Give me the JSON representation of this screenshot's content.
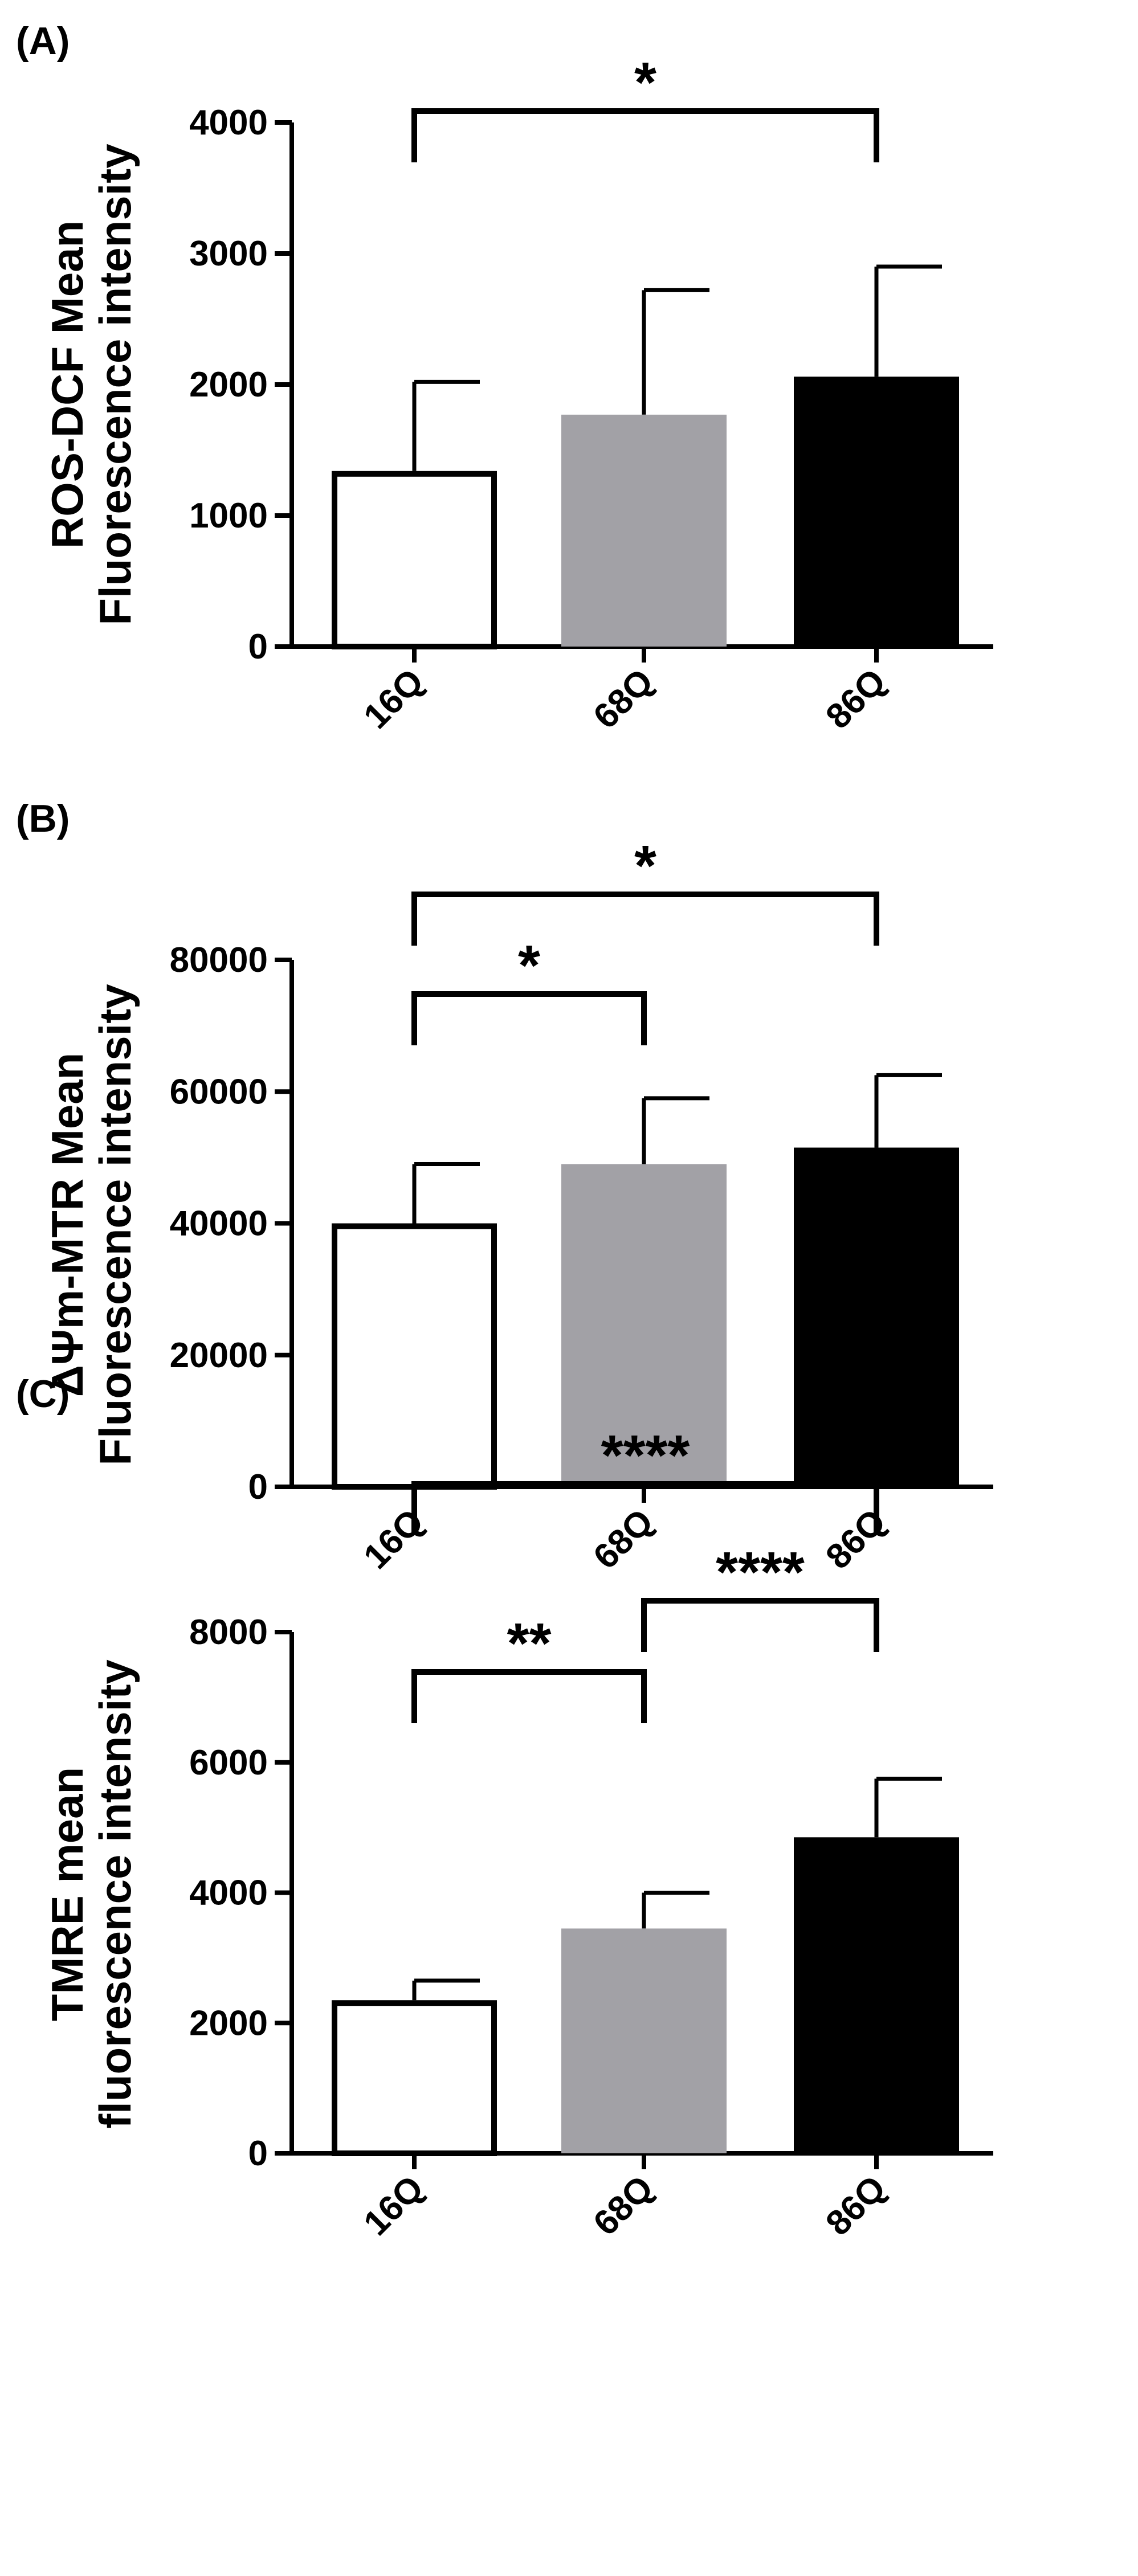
{
  "chart_data": [
    {
      "type": "bar",
      "panel_label": "(A)",
      "ylabel_lines": [
        "ROS-DCF Mean",
        "Fluorescence intensity"
      ],
      "categories": [
        "16Q",
        "68Q",
        "86Q"
      ],
      "values": [
        1340,
        1770,
        2060
      ],
      "errors": [
        680,
        950,
        840
      ],
      "ylim": [
        0,
        4000
      ],
      "yticks": [
        0,
        1000,
        2000,
        3000,
        4000
      ],
      "yticklabels": [
        "0",
        "1000",
        "2000",
        "3000",
        "4000"
      ],
      "bar_colors": [
        "#ffffff",
        "#a2a1a6",
        "#000000"
      ],
      "significance": [
        {
          "from": 0,
          "to": 2,
          "label": "*"
        }
      ]
    },
    {
      "type": "bar",
      "panel_label": "(B)",
      "ylabel_lines": [
        "ΔΨm-MTR Mean",
        "Fluorescence intensity"
      ],
      "categories": [
        "16Q",
        "68Q",
        "86Q"
      ],
      "values": [
        40000,
        49000,
        51500
      ],
      "errors": [
        9000,
        10000,
        11000
      ],
      "ylim": [
        0,
        80000
      ],
      "yticks": [
        0,
        20000,
        40000,
        60000,
        80000
      ],
      "yticklabels": [
        "0",
        "20000",
        "40000",
        "60000",
        "80000"
      ],
      "bar_colors": [
        "#ffffff",
        "#a2a1a6",
        "#000000"
      ],
      "significance": [
        {
          "from": 0,
          "to": 1,
          "label": "*"
        },
        {
          "from": 0,
          "to": 2,
          "label": "*"
        }
      ]
    },
    {
      "type": "bar",
      "panel_label": "(C)",
      "ylabel_lines": [
        "TMRE mean",
        "fluorescence intensity"
      ],
      "categories": [
        "16Q",
        "68Q",
        "86Q"
      ],
      "values": [
        2350,
        3450,
        4850
      ],
      "errors": [
        300,
        550,
        900
      ],
      "ylim": [
        0,
        8000
      ],
      "yticks": [
        0,
        2000,
        4000,
        6000,
        8000
      ],
      "yticklabels": [
        "0",
        "2000",
        "4000",
        "6000",
        "8000"
      ],
      "bar_colors": [
        "#ffffff",
        "#a2a1a6",
        "#000000"
      ],
      "significance": [
        {
          "from": 0,
          "to": 1,
          "label": "**"
        },
        {
          "from": 1,
          "to": 2,
          "label": "****"
        },
        {
          "from": 0,
          "to": 2,
          "label": "****"
        }
      ]
    }
  ]
}
